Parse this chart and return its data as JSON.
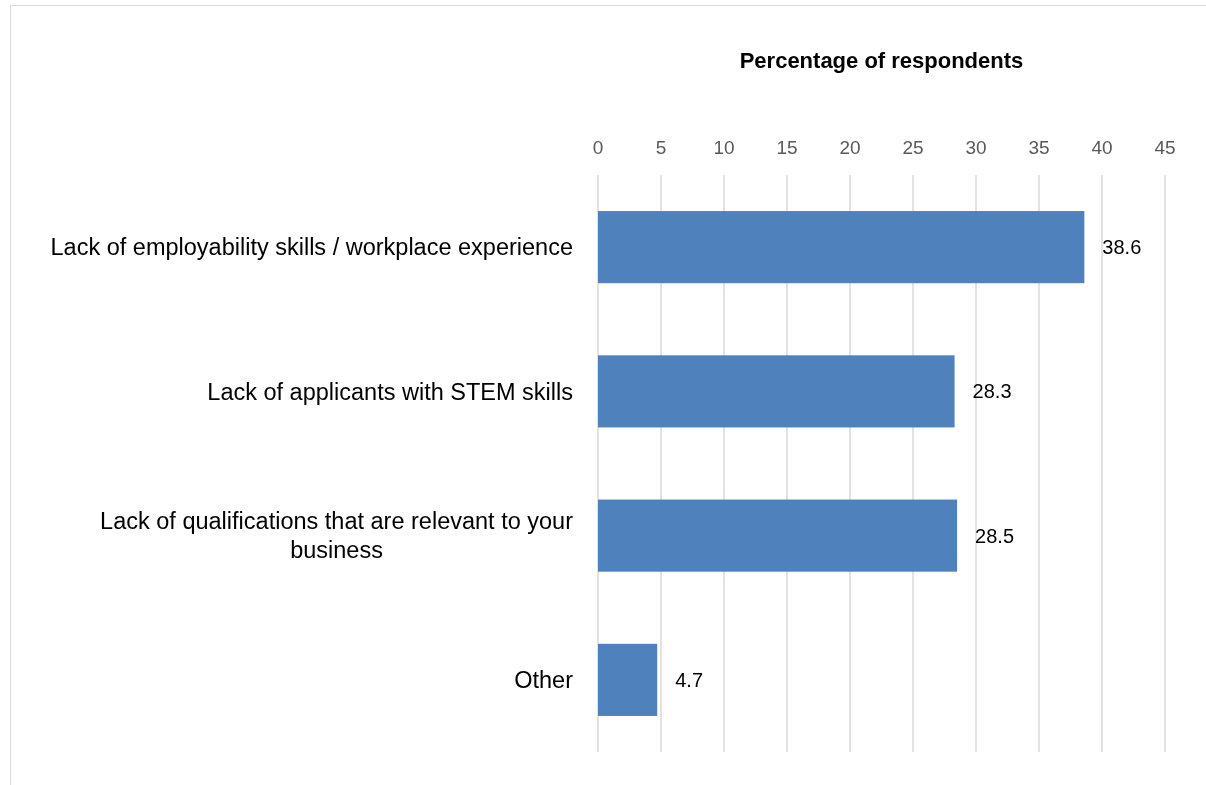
{
  "chart_data": {
    "type": "bar",
    "orientation": "horizontal",
    "xlabel": "Percentage of respondents",
    "categories": [
      "Lack of employability skills / workplace experience",
      "Lack of applicants with STEM skills",
      "Lack of qualifications that are relevant to your business",
      "Other"
    ],
    "values": [
      38.6,
      28.3,
      28.5,
      4.7
    ],
    "color": "#4f81bd",
    "xlim": [
      0,
      45
    ],
    "xticks": [
      0,
      5,
      10,
      15,
      20,
      25,
      30,
      35,
      40,
      45
    ],
    "grid": "x",
    "data_labels": true
  }
}
